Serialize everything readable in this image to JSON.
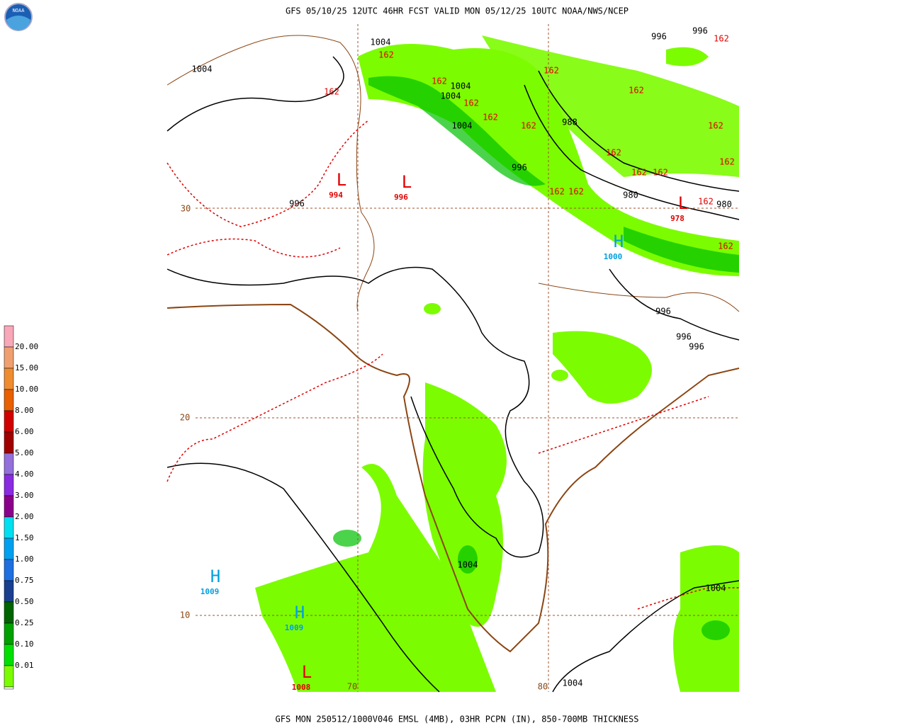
{
  "header": {
    "title": "GFS 05/10/25 12UTC 46HR FCST VALID MON 05/12/25 10UTC NOAA/NWS/NCEP",
    "logo": "NOAA"
  },
  "footer": {
    "caption": "GFS MON 250512/1000V046 EMSL (4MB), 03HR PCPN (IN), 850-700MB THICKNESS"
  },
  "legend": {
    "labels": [
      "20.00",
      "15.00",
      "10.00",
      "8.00",
      "6.00",
      "5.00",
      "4.00",
      "3.00",
      "2.00",
      "1.50",
      "1.00",
      "0.75",
      "0.50",
      "0.25",
      "0.10",
      "0.01"
    ]
  },
  "grid_labels": [
    "30",
    "20",
    "10",
    "70",
    "80"
  ],
  "isobar_labels": [
    "1004",
    "1004",
    "996",
    "996",
    "1004",
    "1004",
    "1004",
    "988",
    "996",
    "996",
    "980",
    "980",
    "996",
    "996",
    "996",
    "1004",
    "1004",
    "1004"
  ],
  "thickness_labels": [
    "162",
    "162",
    "162",
    "162",
    "162",
    "162",
    "162",
    "162",
    "162",
    "162",
    "162",
    "162",
    "162",
    "162",
    "162",
    "162",
    "162",
    "162"
  ],
  "pressure_centers": [
    {
      "letter": "L",
      "value": "994"
    },
    {
      "letter": "L",
      "value": "996"
    },
    {
      "letter": "L",
      "value": "978"
    },
    {
      "letter": "H",
      "value": "1000"
    },
    {
      "letter": "H",
      "value": "1009"
    },
    {
      "letter": "H",
      "value": "1009"
    },
    {
      "letter": "L",
      "value": "1008"
    }
  ]
}
